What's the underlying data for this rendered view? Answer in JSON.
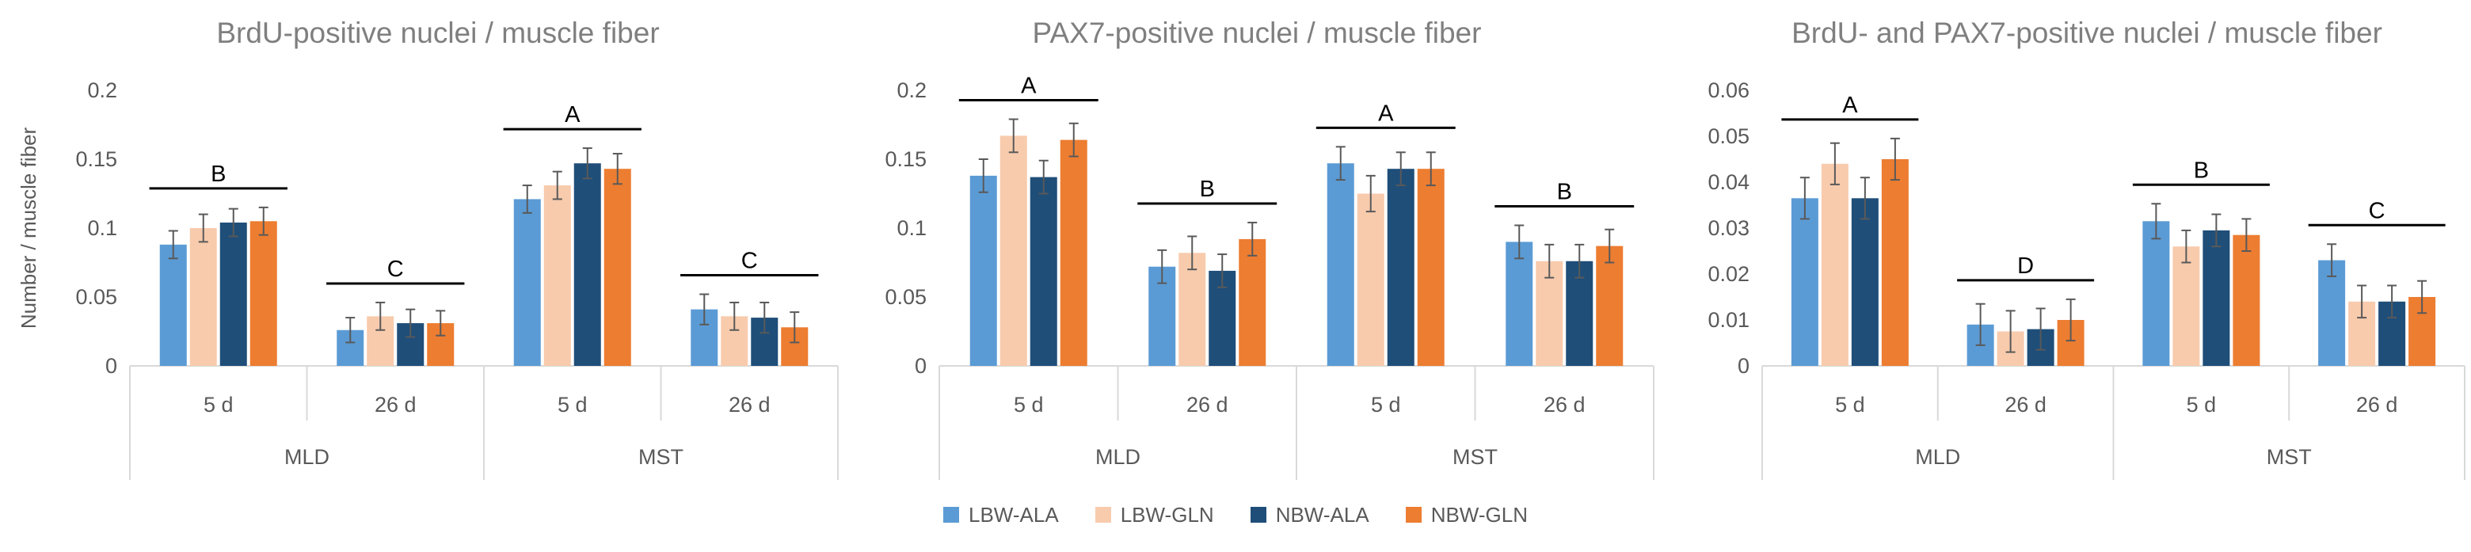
{
  "chart_data": [
    {
      "type": "bar",
      "title": "BrdU-positive nuclei / muscle fiber",
      "ylabel": "Number / muscle fiber",
      "ylim": [
        0,
        0.2
      ],
      "yticks": [
        0,
        0.05,
        0.1,
        0.15,
        0.2
      ],
      "ytick_labels": [
        "0",
        "0.05",
        "0.1",
        "0.15",
        "0.2"
      ],
      "groups": [
        {
          "label": "MLD",
          "subgroups": [
            {
              "label": "5 d",
              "values": [
                0.088,
                0.1,
                0.104,
                0.105
              ],
              "errors": [
                0.01,
                0.01,
                0.01,
                0.01
              ],
              "letter": "B"
            },
            {
              "label": "26 d",
              "values": [
                0.026,
                0.036,
                0.031,
                0.031
              ],
              "errors": [
                0.009,
                0.01,
                0.01,
                0.009
              ],
              "letter": "C"
            }
          ]
        },
        {
          "label": "MST",
          "subgroups": [
            {
              "label": "5 d",
              "values": [
                0.121,
                0.131,
                0.147,
                0.143
              ],
              "errors": [
                0.01,
                0.01,
                0.011,
                0.011
              ],
              "letter": "A"
            },
            {
              "label": "26 d",
              "values": [
                0.041,
                0.036,
                0.035,
                0.028
              ],
              "errors": [
                0.011,
                0.01,
                0.011,
                0.011
              ],
              "letter": "C"
            }
          ]
        }
      ]
    },
    {
      "type": "bar",
      "title": "PAX7-positive nuclei / muscle fiber",
      "ylabel": "",
      "ylim": [
        0,
        0.2
      ],
      "yticks": [
        0,
        0.05,
        0.1,
        0.15,
        0.2
      ],
      "ytick_labels": [
        "0",
        "0.05",
        "0.1",
        "0.15",
        "0.2"
      ],
      "groups": [
        {
          "label": "MLD",
          "subgroups": [
            {
              "label": "5 d",
              "values": [
                0.138,
                0.167,
                0.137,
                0.164
              ],
              "errors": [
                0.012,
                0.012,
                0.012,
                0.012
              ],
              "letter": "A"
            },
            {
              "label": "26 d",
              "values": [
                0.072,
                0.082,
                0.069,
                0.092
              ],
              "errors": [
                0.012,
                0.012,
                0.012,
                0.012
              ],
              "letter": "B"
            }
          ]
        },
        {
          "label": "MST",
          "subgroups": [
            {
              "label": "5 d",
              "values": [
                0.147,
                0.125,
                0.143,
                0.143
              ],
              "errors": [
                0.012,
                0.013,
                0.012,
                0.012
              ],
              "letter": "A"
            },
            {
              "label": "26 d",
              "values": [
                0.09,
                0.076,
                0.076,
                0.087
              ],
              "errors": [
                0.012,
                0.012,
                0.012,
                0.012
              ],
              "letter": "B"
            }
          ]
        }
      ]
    },
    {
      "type": "bar",
      "title": "BrdU- and PAX7-positive nuclei / muscle fiber",
      "ylabel": "",
      "ylim": [
        0,
        0.06
      ],
      "yticks": [
        0,
        0.01,
        0.02,
        0.03,
        0.04,
        0.05,
        0.06
      ],
      "ytick_labels": [
        "0",
        "0.01",
        "0.02",
        "0.03",
        "0.04",
        "0.05",
        "0.06"
      ],
      "groups": [
        {
          "label": "MLD",
          "subgroups": [
            {
              "label": "5 d",
              "values": [
                0.0365,
                0.044,
                0.0365,
                0.045
              ],
              "errors": [
                0.0045,
                0.0045,
                0.0045,
                0.0045
              ],
              "letter": "A"
            },
            {
              "label": "26 d",
              "values": [
                0.009,
                0.0075,
                0.008,
                0.01
              ],
              "errors": [
                0.0045,
                0.0045,
                0.0045,
                0.0045
              ],
              "letter": "D"
            }
          ]
        },
        {
          "label": "MST",
          "subgroups": [
            {
              "label": "5 d",
              "values": [
                0.0315,
                0.026,
                0.0295,
                0.0285
              ],
              "errors": [
                0.0038,
                0.0035,
                0.0035,
                0.0035
              ],
              "letter": "B"
            },
            {
              "label": "26 d",
              "values": [
                0.023,
                0.014,
                0.014,
                0.015
              ],
              "errors": [
                0.0035,
                0.0035,
                0.0035,
                0.0035
              ],
              "letter": "C"
            }
          ]
        }
      ]
    }
  ],
  "legend": [
    {
      "name": "LBW-ALA",
      "color": "#5B9BD5"
    },
    {
      "name": "LBW-GLN",
      "color": "#F8CBAD"
    },
    {
      "name": "NBW-ALA",
      "color": "#1F4E79"
    },
    {
      "name": "NBW-GLN",
      "color": "#ED7D31"
    }
  ],
  "colors": {
    "axis": "#D9D9D9",
    "text": "#595959",
    "title": "#7F7F7F",
    "errorbar": "#595959",
    "letter_line": "#000000"
  }
}
